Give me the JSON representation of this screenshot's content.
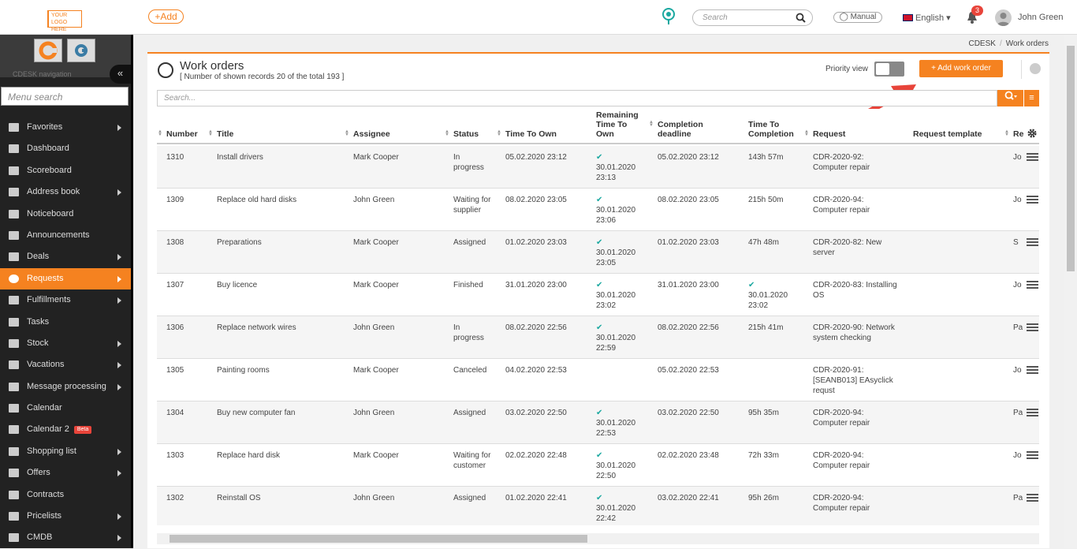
{
  "topbar": {
    "logo_line1": "YOUR LOGO",
    "logo_line2": "HERE",
    "add_label": "+Add",
    "search_placeholder": "Search",
    "manual_label": "Manual",
    "language": "English",
    "notifications_count": "3",
    "user_name": "John Green"
  },
  "sidebar": {
    "nav_label": "CDESK navigation",
    "collapse_label": "«",
    "search_placeholder": "Menu search",
    "items": [
      {
        "label": "Favorites",
        "arrow": true
      },
      {
        "label": "Dashboard",
        "arrow": false
      },
      {
        "label": "Scoreboard",
        "arrow": false
      },
      {
        "label": "Address book",
        "arrow": true
      },
      {
        "label": "Noticeboard",
        "arrow": false
      },
      {
        "label": "Announcements",
        "arrow": false
      },
      {
        "label": "Deals",
        "arrow": true
      },
      {
        "label": "Requests",
        "arrow": true,
        "active": true
      },
      {
        "label": "Fulfillments",
        "arrow": true
      },
      {
        "label": "Tasks",
        "arrow": false
      },
      {
        "label": "Stock",
        "arrow": true
      },
      {
        "label": "Vacations",
        "arrow": true
      },
      {
        "label": "Message processing",
        "arrow": true
      },
      {
        "label": "Calendar",
        "arrow": false
      },
      {
        "label": "Calendar 2",
        "arrow": false,
        "badge": "Beta"
      },
      {
        "label": "Shopping list",
        "arrow": true
      },
      {
        "label": "Offers",
        "arrow": true
      },
      {
        "label": "Contracts",
        "arrow": false
      },
      {
        "label": "Pricelists",
        "arrow": true
      },
      {
        "label": "CMDB",
        "arrow": true
      }
    ]
  },
  "breadcrumb": {
    "root": "CDESK",
    "sep": "/",
    "current": "Work orders"
  },
  "panel": {
    "title": "Work orders",
    "subtitle": "[ Number of shown records 20 of the total 193 ]",
    "priority_label": "Priority view",
    "add_label": "+ Add work order",
    "search_placeholder": "Search..."
  },
  "table": {
    "headers": {
      "number": "Number",
      "title": "Title",
      "assignee": "Assignee",
      "status": "Status",
      "tto": "Time To Own",
      "rtto": "Remaining Time To Own",
      "deadline": "Completion deadline",
      "ttc": "Time To Completion",
      "request": "Request",
      "template": "Request template",
      "re": "Re"
    },
    "rows": [
      {
        "number": "1310",
        "title": "Install drivers",
        "assignee": "Mark Cooper",
        "status": "In progress",
        "tto": "05.02.2020 23:12",
        "rtto": "30.01.2020 23:13",
        "deadline": "05.02.2020 23:12",
        "ttc": "143h 57m",
        "ttc_check": false,
        "request": "CDR-2020-92: Computer repair",
        "re": "Jo"
      },
      {
        "number": "1309",
        "title": "Replace old hard disks",
        "assignee": "John Green",
        "status": "Waiting for supplier",
        "tto": "08.02.2020 23:05",
        "rtto": "30.01.2020 23:06",
        "deadline": "08.02.2020 23:05",
        "ttc": "215h 50m",
        "ttc_check": false,
        "request": "CDR-2020-94: Computer repair",
        "re": "Jo"
      },
      {
        "number": "1308",
        "title": "Preparations",
        "assignee": "Mark Cooper",
        "status": "Assigned",
        "tto": "01.02.2020 23:03",
        "rtto": "30.01.2020 23:05",
        "deadline": "01.02.2020 23:03",
        "ttc": "47h 48m",
        "ttc_check": false,
        "request": "CDR-2020-82: New server",
        "re": "S"
      },
      {
        "number": "1307",
        "title": "Buy licence",
        "assignee": "Mark Cooper",
        "status": "Finished",
        "tto": "31.01.2020 23:00",
        "rtto": "30.01.2020 23:02",
        "deadline": "31.01.2020 23:00",
        "ttc": "30.01.2020 23:02",
        "ttc_check": true,
        "request": "CDR-2020-83: Installing OS",
        "re": "Jo"
      },
      {
        "number": "1306",
        "title": "Replace network wires",
        "assignee": "John Green",
        "status": "In progress",
        "tto": "08.02.2020 22:56",
        "rtto": "30.01.2020 22:59",
        "deadline": "08.02.2020 22:56",
        "ttc": "215h 41m",
        "ttc_check": false,
        "request": "CDR-2020-90: Network system checking",
        "re": "Pa"
      },
      {
        "number": "1305",
        "title": "Painting rooms",
        "assignee": "Mark Cooper",
        "status": "Canceled",
        "tto": "04.02.2020 22:53",
        "rtto": "",
        "deadline": "05.02.2020 22:53",
        "ttc": "",
        "ttc_check": false,
        "request": "CDR-2020-91: [SEANB013] EAsyclick requst",
        "re": "Jo"
      },
      {
        "number": "1304",
        "title": "Buy new computer fan",
        "assignee": "John Green",
        "status": "Assigned",
        "tto": "03.02.2020 22:50",
        "rtto": "30.01.2020 22:53",
        "deadline": "03.02.2020 22:50",
        "ttc": "95h 35m",
        "ttc_check": false,
        "request": "CDR-2020-94: Computer repair",
        "re": "Pa"
      },
      {
        "number": "1303",
        "title": "Replace hard disk",
        "assignee": "Mark Cooper",
        "status": "Waiting for customer",
        "tto": "02.02.2020 22:48",
        "rtto": "30.01.2020 22:50",
        "deadline": "02.02.2020 23:48",
        "ttc": "72h 33m",
        "ttc_check": false,
        "request": "CDR-2020-94: Computer repair",
        "re": "Jo"
      },
      {
        "number": "1302",
        "title": "Reinstall OS",
        "assignee": "John Green",
        "status": "Assigned",
        "tto": "01.02.2020 22:41",
        "rtto": "30.01.2020 22:42",
        "deadline": "03.02.2020 22:41",
        "ttc": "95h 26m",
        "ttc_check": false,
        "request": "CDR-2020-94: Computer repair",
        "re": "Pa"
      }
    ]
  },
  "colors": {
    "accent": "#f58220",
    "sidebar_bg": "#222222",
    "check": "#1aa8a0",
    "badge": "#e8443a"
  }
}
